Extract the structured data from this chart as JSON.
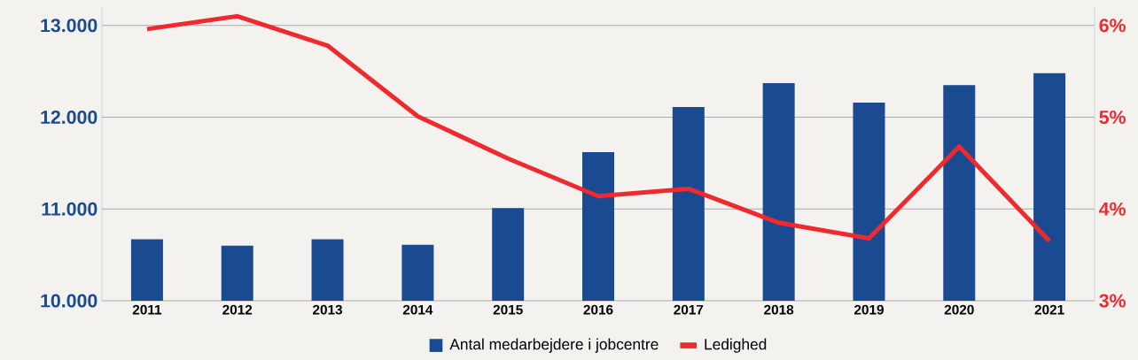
{
  "chart_data": {
    "type": "bar",
    "categories": [
      "2011",
      "2012",
      "2013",
      "2014",
      "2015",
      "2016",
      "2017",
      "2018",
      "2019",
      "2020",
      "2021"
    ],
    "series": [
      {
        "name": "Antal medarbejdere i jobcentre",
        "color": "#1a4a8f",
        "values": [
          10670,
          10600,
          10670,
          10610,
          11010,
          11620,
          12110,
          12370,
          12160,
          12350,
          12480
        ]
      },
      {
        "name": "Ledighed",
        "type": "line",
        "axis": "y2",
        "color": "#ee2a2e",
        "values": [
          5.96,
          6.1,
          5.78,
          5.01,
          4.55,
          4.14,
          4.22,
          3.85,
          3.68,
          4.68,
          3.65
        ]
      }
    ],
    "ylim": [
      10000,
      13200
    ],
    "yticks": [
      {
        "value": 10000,
        "label": "10.000"
      },
      {
        "value": 11000,
        "label": "11.000"
      },
      {
        "value": 12000,
        "label": "12.000"
      },
      {
        "value": 13000,
        "label": "13.000"
      }
    ],
    "y2lim": [
      3,
      6.2
    ],
    "y2ticks": [
      {
        "value": 3,
        "label": "3%"
      },
      {
        "value": 4,
        "label": "4%"
      },
      {
        "value": 5,
        "label": "5%"
      },
      {
        "value": 6,
        "label": "6%"
      }
    ],
    "grid": "y",
    "legend": "bottom",
    "marker": "none",
    "line_style": "solid"
  }
}
